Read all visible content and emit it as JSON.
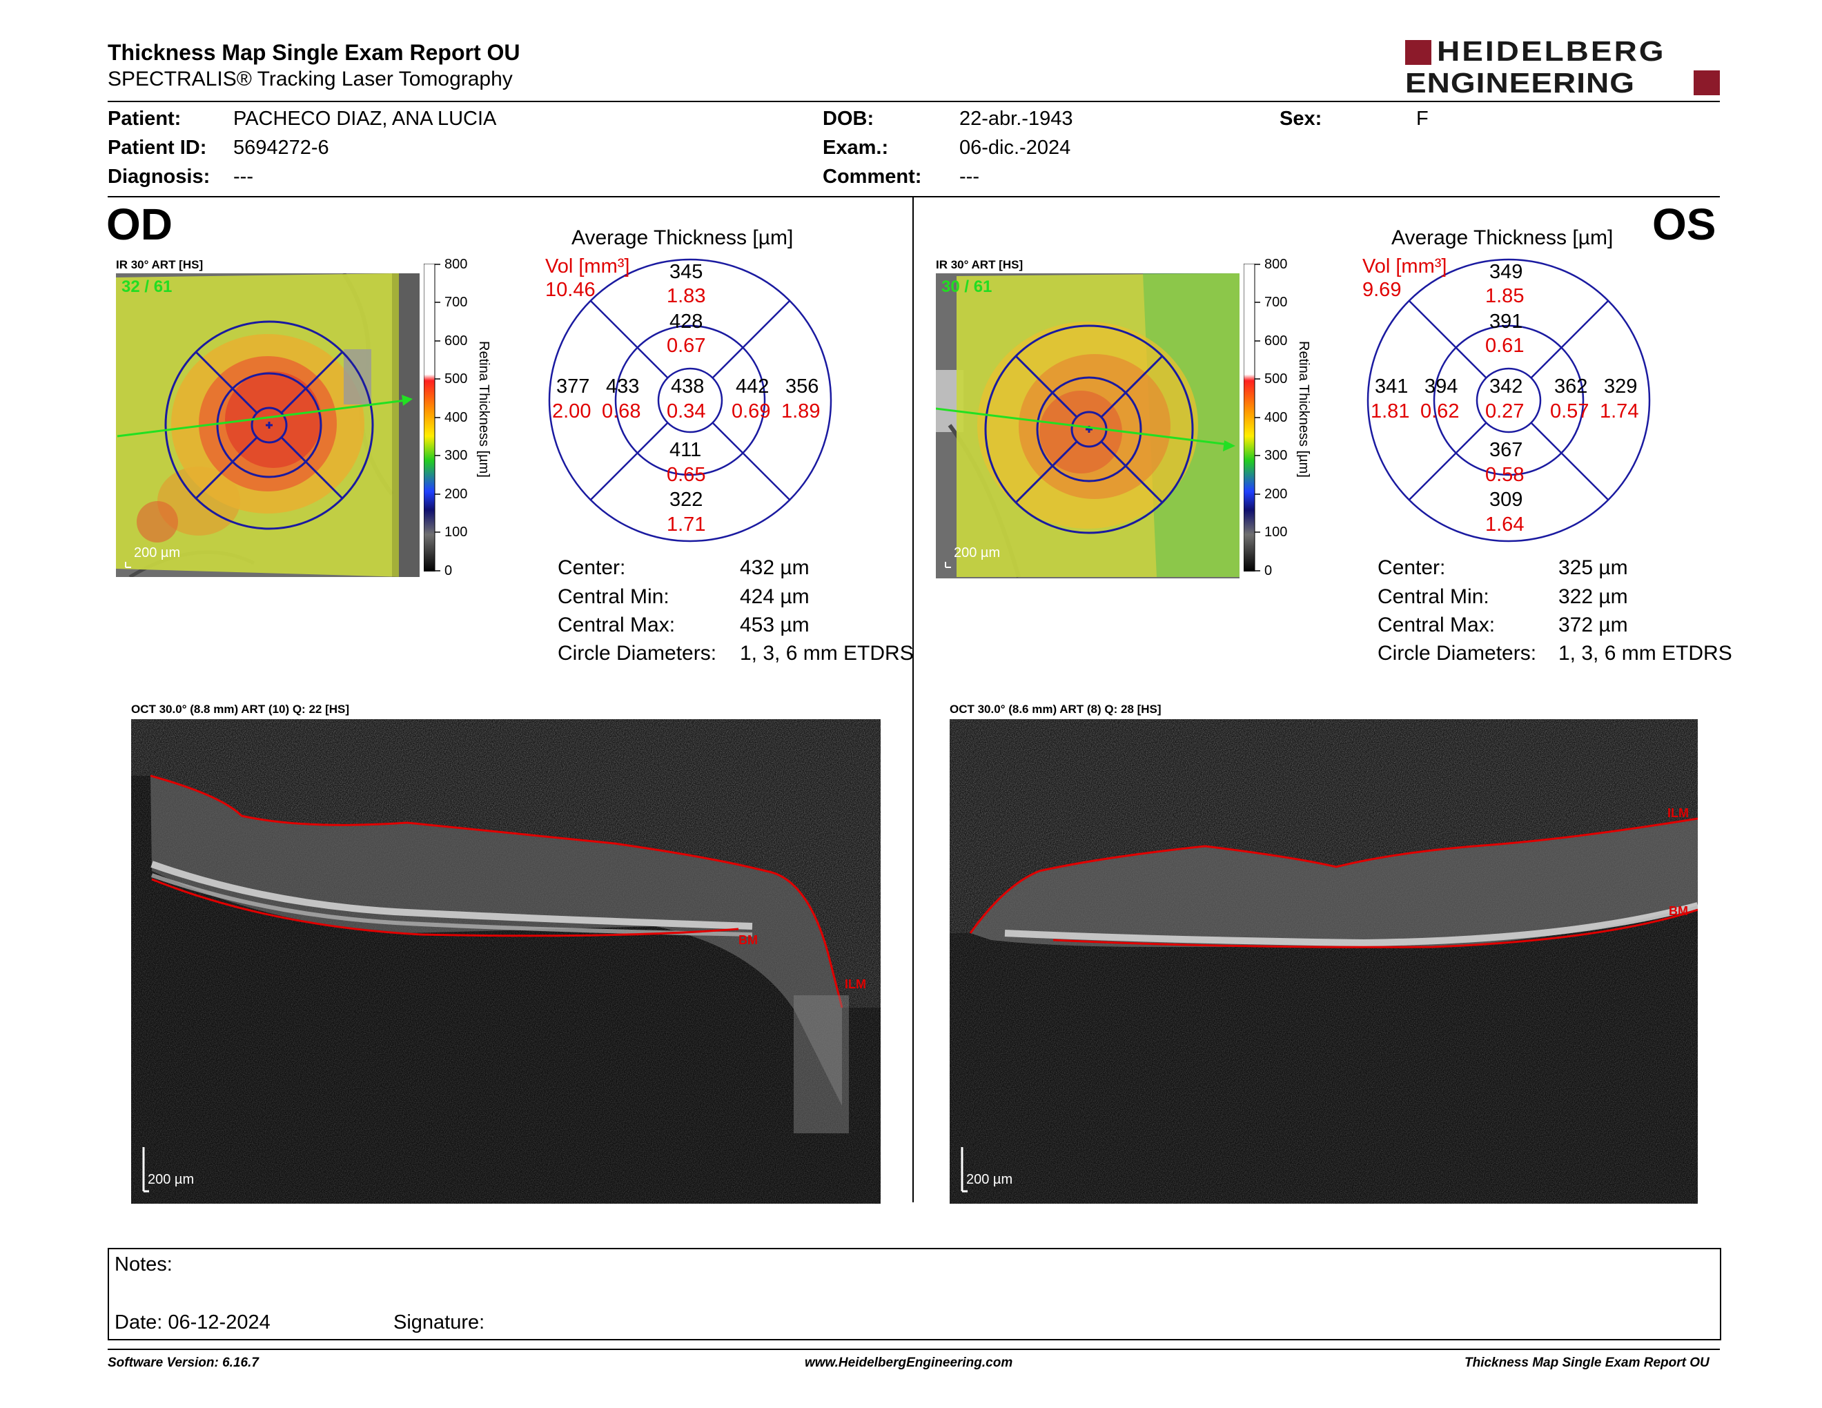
{
  "header": {
    "title": "Thickness Map Single Exam Report OU",
    "subtitle": "SPECTRALIS® Tracking Laser Tomography",
    "logo_line1": "HEIDELBERG",
    "logo_line2": "ENGINEERING"
  },
  "patient": {
    "name_label": "Patient:",
    "name": "PACHECO DIAZ, ANA LUCIA",
    "id_label": "Patient ID:",
    "id": "5694272-6",
    "diagnosis_label": "Diagnosis:",
    "diagnosis": "---",
    "dob_label": "DOB:",
    "dob": "22-abr.-1943",
    "exam_label": "Exam.:",
    "exam": "06-dic.-2024",
    "comment_label": "Comment:",
    "comment": "---",
    "sex_label": "Sex:",
    "sex": "F"
  },
  "colors": {
    "accent_red": "#8c1a2a",
    "value_red": "#e00000",
    "grid_blue": "#1a1aa0",
    "scan_line_green": "#22e022"
  },
  "od": {
    "eye_label": "OD",
    "map_label": "IR 30° ART [HS]",
    "frames": "32 / 61",
    "scale": "200 µm",
    "avg_title": "Average Thickness [µm]",
    "vol_label": "Vol [mm³]",
    "vol_total": "10.46",
    "grid": {
      "outer_sup_t": "345",
      "outer_sup_v": "1.83",
      "inner_sup_t": "428",
      "inner_sup_v": "0.67",
      "outer_temp_t": "377",
      "outer_temp_v": "2.00",
      "inner_temp_t": "433",
      "inner_temp_v": "0.68",
      "center_t": "438",
      "center_v": "0.34",
      "inner_nas_t": "442",
      "inner_nas_v": "0.69",
      "outer_nas_t": "356",
      "outer_nas_v": "1.89",
      "inner_inf_t": "411",
      "inner_inf_v": "0.65",
      "outer_inf_t": "322",
      "outer_inf_v": "1.71"
    },
    "stats": {
      "center_label": "Center:",
      "center": "432 µm",
      "min_label": "Central Min:",
      "min": "424 µm",
      "max_label": "Central Max:",
      "max": "453 µm",
      "circ_label": "Circle Diameters:",
      "circ": "1, 3, 6 mm ETDRS"
    },
    "oct_label": "OCT 30.0° (8.8 mm) ART (10) Q: 22 [HS]",
    "oct_scale": "200 µm",
    "bm_label": "BM",
    "ilm_label": "ILM"
  },
  "os": {
    "eye_label": "OS",
    "map_label": "IR 30° ART [HS]",
    "frames": "30 / 61",
    "scale": "200 µm",
    "avg_title": "Average Thickness [µm]",
    "vol_label": "Vol [mm³]",
    "vol_total": "9.69",
    "grid": {
      "outer_sup_t": "349",
      "outer_sup_v": "1.85",
      "inner_sup_t": "391",
      "inner_sup_v": "0.61",
      "outer_temp_t": "341",
      "outer_temp_v": "1.81",
      "inner_temp_t": "394",
      "inner_temp_v": "0.62",
      "center_t": "342",
      "center_v": "0.27",
      "inner_nas_t": "362",
      "inner_nas_v": "0.57",
      "outer_nas_t": "329",
      "outer_nas_v": "1.74",
      "inner_inf_t": "367",
      "inner_inf_v": "0.58",
      "outer_inf_t": "309",
      "outer_inf_v": "1.64"
    },
    "stats": {
      "center_label": "Center:",
      "center": "325 µm",
      "min_label": "Central Min:",
      "min": "322 µm",
      "max_label": "Central Max:",
      "max": "372 µm",
      "circ_label": "Circle Diameters:",
      "circ": "1, 3, 6 mm ETDRS"
    },
    "oct_label": "OCT 30.0° (8.6 mm) ART (8) Q: 28 [HS]",
    "oct_scale": "200 µm",
    "bm_label": "BM",
    "ilm_label": "ILM"
  },
  "colorbar": {
    "ticks": [
      "800",
      "700",
      "600",
      "500",
      "400",
      "300",
      "200",
      "100",
      "0"
    ],
    "axis_label": "Retina Thickness [µm]"
  },
  "notes": {
    "notes_label": "Notes:",
    "date_label": "Date: 06-12-2024",
    "signature_label": "Signature:"
  },
  "footer": {
    "software": "Software Version: 6.16.7",
    "website": "www.HeidelbergEngineering.com",
    "report_name": "Thickness Map Single Exam Report OU"
  }
}
